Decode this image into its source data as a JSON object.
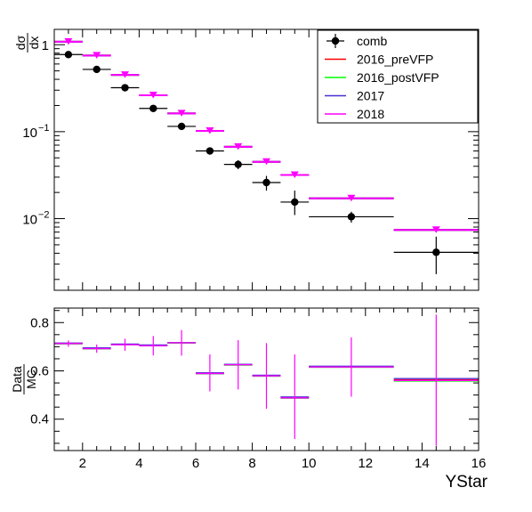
{
  "chart_data": [
    {
      "type": "scatter",
      "panel": "top",
      "ylabel_num": "dσ",
      "ylabel_den": "dx",
      "yscale": "log",
      "xlim": [
        1,
        16
      ],
      "ylim": [
        0.0015,
        1.5
      ],
      "y_ticks": [
        {
          "value": 1,
          "label": "1"
        },
        {
          "value": 0.1,
          "label": "10",
          "exp": "−1"
        },
        {
          "value": 0.01,
          "label": "10",
          "exp": "−2"
        }
      ],
      "legend_position": "top-right",
      "series": [
        {
          "name": "comb",
          "color": "#000000",
          "marker": "circle",
          "points": [
            {
              "x": 1.5,
              "xlo": 1,
              "xhi": 2,
              "y": 0.77,
              "ylo": 0.74,
              "yhi": 0.8
            },
            {
              "x": 2.5,
              "xlo": 2,
              "xhi": 3,
              "y": 0.52,
              "ylo": 0.5,
              "yhi": 0.54
            },
            {
              "x": 3.5,
              "xlo": 3,
              "xhi": 4,
              "y": 0.32,
              "ylo": 0.31,
              "yhi": 0.33
            },
            {
              "x": 4.5,
              "xlo": 4,
              "xhi": 5,
              "y": 0.185,
              "ylo": 0.178,
              "yhi": 0.192
            },
            {
              "x": 5.5,
              "xlo": 5,
              "xhi": 6,
              "y": 0.115,
              "ylo": 0.11,
              "yhi": 0.12
            },
            {
              "x": 6.5,
              "xlo": 6,
              "xhi": 7,
              "y": 0.06,
              "ylo": 0.056,
              "yhi": 0.064
            },
            {
              "x": 7.5,
              "xlo": 7,
              "xhi": 8,
              "y": 0.042,
              "ylo": 0.037,
              "yhi": 0.047
            },
            {
              "x": 8.5,
              "xlo": 8,
              "xhi": 9,
              "y": 0.026,
              "ylo": 0.021,
              "yhi": 0.031
            },
            {
              "x": 9.5,
              "xlo": 9,
              "xhi": 10,
              "y": 0.0155,
              "ylo": 0.011,
              "yhi": 0.021
            },
            {
              "x": 11.5,
              "xlo": 10,
              "xhi": 13,
              "y": 0.0105,
              "ylo": 0.009,
              "yhi": 0.012
            },
            {
              "x": 14.5,
              "xlo": 13,
              "xhi": 16,
              "y": 0.0041,
              "ylo": 0.0023,
              "yhi": 0.0062
            }
          ]
        },
        {
          "name": "2016_preVFP",
          "color": "#ff0000",
          "marker": "none",
          "points": [
            {
              "x": 1.5,
              "xlo": 1,
              "xhi": 2,
              "y": 1.08
            },
            {
              "x": 2.5,
              "xlo": 2,
              "xhi": 3,
              "y": 0.75
            },
            {
              "x": 3.5,
              "xlo": 3,
              "xhi": 4,
              "y": 0.45
            },
            {
              "x": 4.5,
              "xlo": 4,
              "xhi": 5,
              "y": 0.262
            },
            {
              "x": 5.5,
              "xlo": 5,
              "xhi": 6,
              "y": 0.162
            },
            {
              "x": 6.5,
              "xlo": 6,
              "xhi": 7,
              "y": 0.102
            },
            {
              "x": 7.5,
              "xlo": 7,
              "xhi": 8,
              "y": 0.067
            },
            {
              "x": 8.5,
              "xlo": 8,
              "xhi": 9,
              "y": 0.045
            },
            {
              "x": 9.5,
              "xlo": 9,
              "xhi": 10,
              "y": 0.0318
            },
            {
              "x": 11.5,
              "xlo": 10,
              "xhi": 13,
              "y": 0.0171
            },
            {
              "x": 14.5,
              "xlo": 13,
              "xhi": 16,
              "y": 0.0074
            }
          ]
        },
        {
          "name": "2016_postVFP",
          "color": "#00ff00",
          "marker": "none",
          "points": [
            {
              "x": 1.5,
              "xlo": 1,
              "xhi": 2,
              "y": 1.08
            },
            {
              "x": 2.5,
              "xlo": 2,
              "xhi": 3,
              "y": 0.75
            },
            {
              "x": 3.5,
              "xlo": 3,
              "xhi": 4,
              "y": 0.45
            },
            {
              "x": 4.5,
              "xlo": 4,
              "xhi": 5,
              "y": 0.262
            },
            {
              "x": 5.5,
              "xlo": 5,
              "xhi": 6,
              "y": 0.162
            },
            {
              "x": 6.5,
              "xlo": 6,
              "xhi": 7,
              "y": 0.102
            },
            {
              "x": 7.5,
              "xlo": 7,
              "xhi": 8,
              "y": 0.067
            },
            {
              "x": 8.5,
              "xlo": 8,
              "xhi": 9,
              "y": 0.045
            },
            {
              "x": 9.5,
              "xlo": 9,
              "xhi": 10,
              "y": 0.0318
            },
            {
              "x": 11.5,
              "xlo": 10,
              "xhi": 13,
              "y": 0.0171
            },
            {
              "x": 14.5,
              "xlo": 13,
              "xhi": 16,
              "y": 0.0074
            }
          ]
        },
        {
          "name": "2017",
          "color": "#4a2fd0",
          "marker": "none",
          "points": [
            {
              "x": 1.5,
              "xlo": 1,
              "xhi": 2,
              "y": 1.08
            },
            {
              "x": 2.5,
              "xlo": 2,
              "xhi": 3,
              "y": 0.75
            },
            {
              "x": 3.5,
              "xlo": 3,
              "xhi": 4,
              "y": 0.45
            },
            {
              "x": 4.5,
              "xlo": 4,
              "xhi": 5,
              "y": 0.262
            },
            {
              "x": 5.5,
              "xlo": 5,
              "xhi": 6,
              "y": 0.162
            },
            {
              "x": 6.5,
              "xlo": 6,
              "xhi": 7,
              "y": 0.102
            },
            {
              "x": 7.5,
              "xlo": 7,
              "xhi": 8,
              "y": 0.067
            },
            {
              "x": 8.5,
              "xlo": 8,
              "xhi": 9,
              "y": 0.045
            },
            {
              "x": 9.5,
              "xlo": 9,
              "xhi": 10,
              "y": 0.0318
            },
            {
              "x": 11.5,
              "xlo": 10,
              "xhi": 13,
              "y": 0.0171
            },
            {
              "x": 14.5,
              "xlo": 13,
              "xhi": 16,
              "y": 0.0074
            }
          ]
        },
        {
          "name": "2018",
          "color": "#ff00ff",
          "marker": "triangle-down",
          "points": [
            {
              "x": 1.5,
              "xlo": 1,
              "xhi": 2,
              "y": 1.08
            },
            {
              "x": 2.5,
              "xlo": 2,
              "xhi": 3,
              "y": 0.75
            },
            {
              "x": 3.5,
              "xlo": 3,
              "xhi": 4,
              "y": 0.45
            },
            {
              "x": 4.5,
              "xlo": 4,
              "xhi": 5,
              "y": 0.262
            },
            {
              "x": 5.5,
              "xlo": 5,
              "xhi": 6,
              "y": 0.162
            },
            {
              "x": 6.5,
              "xlo": 6,
              "xhi": 7,
              "y": 0.102
            },
            {
              "x": 7.5,
              "xlo": 7,
              "xhi": 8,
              "y": 0.067
            },
            {
              "x": 8.5,
              "xlo": 8,
              "xhi": 9,
              "y": 0.045
            },
            {
              "x": 9.5,
              "xlo": 9,
              "xhi": 10,
              "y": 0.0318
            },
            {
              "x": 11.5,
              "xlo": 10,
              "xhi": 13,
              "y": 0.0171
            },
            {
              "x": 14.5,
              "xlo": 13,
              "xhi": 16,
              "y": 0.0074
            }
          ]
        }
      ]
    },
    {
      "type": "scatter",
      "panel": "ratio",
      "xlabel": "YStar",
      "ylabel_num": "Data",
      "ylabel_den": "MC",
      "xlim": [
        1,
        16
      ],
      "ylim": [
        0.27,
        0.86
      ],
      "x_ticks": [
        2,
        4,
        6,
        8,
        10,
        12,
        14,
        16
      ],
      "y_ticks": [
        0.4,
        0.6,
        0.8
      ],
      "series": [
        {
          "name": "2016_preVFP",
          "color": "#ff0000",
          "points": [
            {
              "x": 1.5,
              "xlo": 1,
              "xhi": 2,
              "y": 0.714
            },
            {
              "x": 2.5,
              "xlo": 2,
              "xhi": 3,
              "y": 0.693
            },
            {
              "x": 3.5,
              "xlo": 3,
              "xhi": 4,
              "y": 0.71
            },
            {
              "x": 4.5,
              "xlo": 4,
              "xhi": 5,
              "y": 0.706
            },
            {
              "x": 5.5,
              "xlo": 5,
              "xhi": 6,
              "y": 0.716
            },
            {
              "x": 6.5,
              "xlo": 6,
              "xhi": 7,
              "y": 0.59
            },
            {
              "x": 7.5,
              "xlo": 7,
              "xhi": 8,
              "y": 0.625
            },
            {
              "x": 8.5,
              "xlo": 8,
              "xhi": 9,
              "y": 0.58
            },
            {
              "x": 9.5,
              "xlo": 9,
              "xhi": 10,
              "y": 0.49
            },
            {
              "x": 11.5,
              "xlo": 10,
              "xhi": 13,
              "y": 0.617
            },
            {
              "x": 14.5,
              "xlo": 13,
              "xhi": 16,
              "y": 0.563
            }
          ]
        },
        {
          "name": "2016_postVFP",
          "color": "#00ff00",
          "points": [
            {
              "x": 1.5,
              "xlo": 1,
              "xhi": 2,
              "y": 0.712
            },
            {
              "x": 2.5,
              "xlo": 2,
              "xhi": 3,
              "y": 0.691
            },
            {
              "x": 3.5,
              "xlo": 3,
              "xhi": 4,
              "y": 0.709
            },
            {
              "x": 4.5,
              "xlo": 4,
              "xhi": 5,
              "y": 0.705
            },
            {
              "x": 5.5,
              "xlo": 5,
              "xhi": 6,
              "y": 0.715
            },
            {
              "x": 6.5,
              "xlo": 6,
              "xhi": 7,
              "y": 0.588
            },
            {
              "x": 7.5,
              "xlo": 7,
              "xhi": 8,
              "y": 0.624
            },
            {
              "x": 8.5,
              "xlo": 8,
              "xhi": 9,
              "y": 0.578
            },
            {
              "x": 9.5,
              "xlo": 9,
              "xhi": 10,
              "y": 0.487
            },
            {
              "x": 11.5,
              "xlo": 10,
              "xhi": 13,
              "y": 0.615
            },
            {
              "x": 14.5,
              "xlo": 13,
              "xhi": 16,
              "y": 0.558
            }
          ]
        },
        {
          "name": "2017",
          "color": "#4a2fd0",
          "points": [
            {
              "x": 1.5,
              "xlo": 1,
              "xhi": 2,
              "y": 0.715
            },
            {
              "x": 2.5,
              "xlo": 2,
              "xhi": 3,
              "y": 0.695
            },
            {
              "x": 3.5,
              "xlo": 3,
              "xhi": 4,
              "y": 0.711
            },
            {
              "x": 4.5,
              "xlo": 4,
              "xhi": 5,
              "y": 0.707
            },
            {
              "x": 5.5,
              "xlo": 5,
              "xhi": 6,
              "y": 0.717
            },
            {
              "x": 6.5,
              "xlo": 6,
              "xhi": 7,
              "y": 0.592
            },
            {
              "x": 7.5,
              "xlo": 7,
              "xhi": 8,
              "y": 0.627
            },
            {
              "x": 8.5,
              "xlo": 8,
              "xhi": 9,
              "y": 0.582
            },
            {
              "x": 9.5,
              "xlo": 9,
              "xhi": 10,
              "y": 0.492
            },
            {
              "x": 11.5,
              "xlo": 10,
              "xhi": 13,
              "y": 0.619
            },
            {
              "x": 14.5,
              "xlo": 13,
              "xhi": 16,
              "y": 0.568
            }
          ]
        },
        {
          "name": "2018",
          "color": "#ff00ff",
          "points": [
            {
              "x": 1.5,
              "xlo": 1,
              "xhi": 2,
              "y": 0.713,
              "ylo": 0.7,
              "yhi": 0.726
            },
            {
              "x": 2.5,
              "xlo": 2,
              "xhi": 3,
              "y": 0.692,
              "ylo": 0.675,
              "yhi": 0.709
            },
            {
              "x": 3.5,
              "xlo": 3,
              "xhi": 4,
              "y": 0.708,
              "ylo": 0.683,
              "yhi": 0.733
            },
            {
              "x": 4.5,
              "xlo": 4,
              "xhi": 5,
              "y": 0.704,
              "ylo": 0.664,
              "yhi": 0.744
            },
            {
              "x": 5.5,
              "xlo": 5,
              "xhi": 6,
              "y": 0.716,
              "ylo": 0.663,
              "yhi": 0.769
            },
            {
              "x": 6.5,
              "xlo": 6,
              "xhi": 7,
              "y": 0.589,
              "ylo": 0.515,
              "yhi": 0.668
            },
            {
              "x": 7.5,
              "xlo": 7,
              "xhi": 8,
              "y": 0.625,
              "ylo": 0.523,
              "yhi": 0.727
            },
            {
              "x": 8.5,
              "xlo": 8,
              "xhi": 9,
              "y": 0.579,
              "ylo": 0.443,
              "yhi": 0.715
            },
            {
              "x": 9.5,
              "xlo": 9,
              "xhi": 10,
              "y": 0.488,
              "ylo": 0.318,
              "yhi": 0.668
            },
            {
              "x": 11.5,
              "xlo": 10,
              "xhi": 13,
              "y": 0.616,
              "ylo": 0.493,
              "yhi": 0.739
            },
            {
              "x": 14.5,
              "xlo": 13,
              "xhi": 16,
              "y": 0.56,
              "ylo": 0.29,
              "yhi": 0.833
            }
          ]
        }
      ]
    }
  ]
}
